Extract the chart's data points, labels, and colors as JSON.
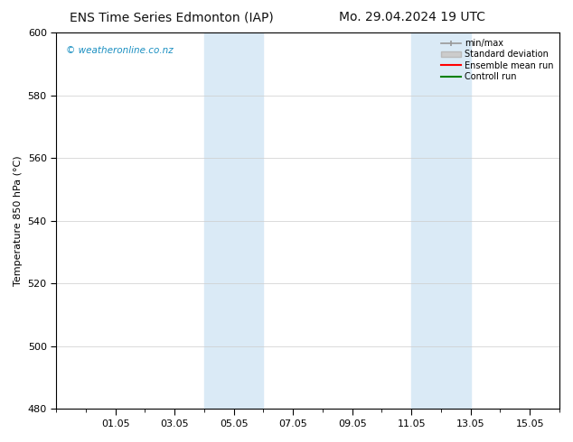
{
  "title_left": "ENS Time Series Edmonton (IAP)",
  "title_right": "Mo. 29.04.2024 19 UTC",
  "ylabel": "Temperature 850 hPa (°C)",
  "watermark": "© weatheronline.co.nz",
  "watermark_color": "#1a8fc1",
  "ylim": [
    480,
    600
  ],
  "yticks": [
    480,
    500,
    520,
    540,
    560,
    580,
    600
  ],
  "xtick_labels": [
    "01.05",
    "03.05",
    "05.05",
    "07.05",
    "09.05",
    "11.05",
    "13.05",
    "15.05"
  ],
  "xtick_positions": [
    2,
    4,
    6,
    8,
    10,
    12,
    14,
    16
  ],
  "xlim": [
    0,
    17
  ],
  "shaded_bands": [
    {
      "x_start": 5.0,
      "x_end": 7.0,
      "color": "#daeaf6"
    },
    {
      "x_start": 12.0,
      "x_end": 14.0,
      "color": "#daeaf6"
    }
  ],
  "legend_entries": [
    {
      "label": "min/max",
      "color": "#aaaaaa",
      "lw": 1.5
    },
    {
      "label": "Standard deviation",
      "color": "#cccccc",
      "lw": 6
    },
    {
      "label": "Ensemble mean run",
      "color": "#ff0000",
      "lw": 1.5
    },
    {
      "label": "Controll run",
      "color": "#008000",
      "lw": 1.5
    }
  ],
  "background_color": "#ffffff",
  "plot_background": "#ffffff",
  "grid_color": "#cccccc",
  "axis_color": "#000000",
  "title_fontsize": 10,
  "label_fontsize": 8,
  "tick_fontsize": 8
}
